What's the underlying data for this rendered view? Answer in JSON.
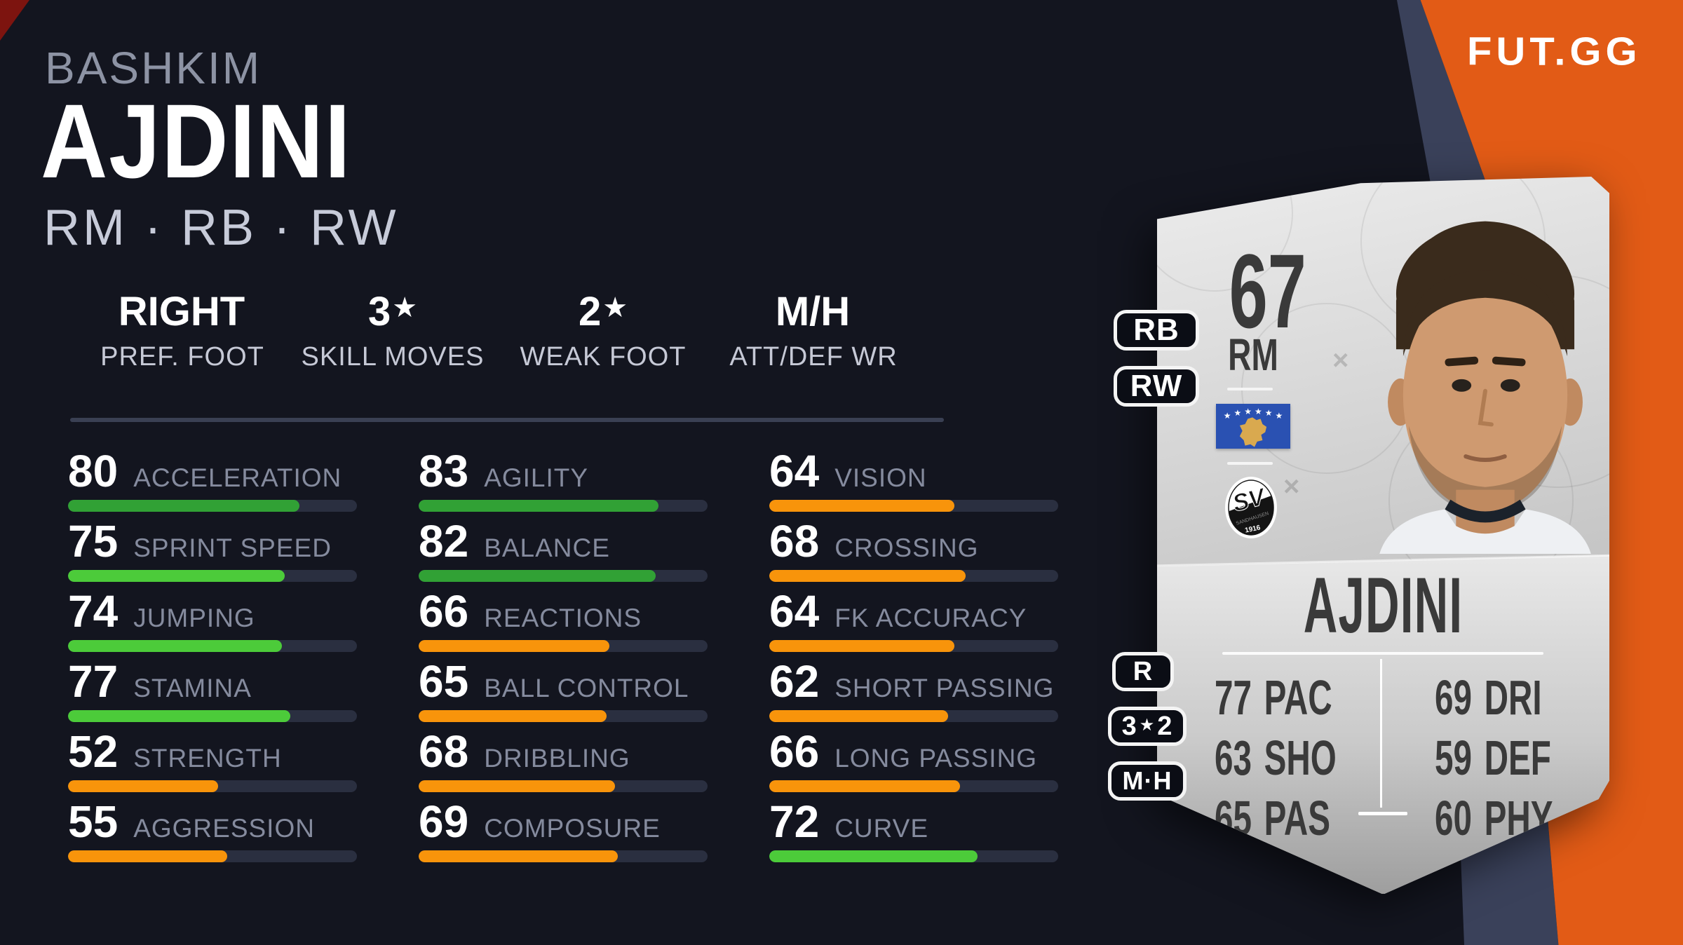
{
  "brand": {
    "logo_text": "FUT.GG"
  },
  "player": {
    "first_name": "BASHKIM",
    "last_name": "AJDINI",
    "positions": "RM · RB · RW"
  },
  "summary": [
    {
      "value": "RIGHT",
      "star": "",
      "label": "PREF. FOOT"
    },
    {
      "value": "3",
      "star": "★",
      "label": "SKILL MOVES"
    },
    {
      "value": "2",
      "star": "★",
      "label": "WEAK FOOT"
    },
    {
      "value": "M/H",
      "star": "",
      "label": "ATT/DEF WR"
    }
  ],
  "stats": {
    "columns": [
      {
        "rows": [
          {
            "label": "ACCELERATION",
            "value": 80,
            "tier": "green_dark"
          },
          {
            "label": "SPRINT SPEED",
            "value": 75,
            "tier": "green"
          },
          {
            "label": "JUMPING",
            "value": 74,
            "tier": "green"
          },
          {
            "label": "STAMINA",
            "value": 77,
            "tier": "green"
          },
          {
            "label": "STRENGTH",
            "value": 52,
            "tier": "orange"
          },
          {
            "label": "AGGRESSION",
            "value": 55,
            "tier": "orange"
          }
        ]
      },
      {
        "rows": [
          {
            "label": "AGILITY",
            "value": 83,
            "tier": "green_dark"
          },
          {
            "label": "BALANCE",
            "value": 82,
            "tier": "green_dark"
          },
          {
            "label": "REACTIONS",
            "value": 66,
            "tier": "orange"
          },
          {
            "label": "BALL CONTROL",
            "value": 65,
            "tier": "orange"
          },
          {
            "label": "DRIBBLING",
            "value": 68,
            "tier": "orange"
          },
          {
            "label": "COMPOSURE",
            "value": 69,
            "tier": "orange"
          }
        ]
      },
      {
        "rows": [
          {
            "label": "VISION",
            "value": 64,
            "tier": "orange"
          },
          {
            "label": "CROSSING",
            "value": 68,
            "tier": "orange"
          },
          {
            "label": "FK ACCURACY",
            "value": 64,
            "tier": "orange"
          },
          {
            "label": "SHORT PASSING",
            "value": 62,
            "tier": "orange"
          },
          {
            "label": "LONG PASSING",
            "value": 66,
            "tier": "orange"
          },
          {
            "label": "CURVE",
            "value": 72,
            "tier": "green"
          }
        ]
      }
    ]
  },
  "card": {
    "rating": "67",
    "position": "RM",
    "alt_positions": {
      "first": "RB",
      "second": "RW"
    },
    "side_badges": {
      "foot": "R",
      "skill_a": "3",
      "skill_star": "★",
      "skill_b": "2",
      "workrate": "M·H"
    },
    "club": {
      "initials": "SV",
      "name": "SANDHAUSEN",
      "year": "1916"
    },
    "name": "AJDINI",
    "face_stats": [
      {
        "value": "77",
        "label": "PAC"
      },
      {
        "value": "63",
        "label": "SHO"
      },
      {
        "value": "65",
        "label": "PAS"
      },
      {
        "value": "69",
        "label": "DRI"
      },
      {
        "value": "59",
        "label": "DEF"
      },
      {
        "value": "60",
        "label": "PHY"
      }
    ]
  },
  "icons": {
    "star": "★",
    "x_mark": "×"
  },
  "colors": {
    "tiers": {
      "green_dark": "#31a135",
      "green": "#4ccb3a",
      "orange": "#f8940b"
    },
    "brand_orange": "#e25b16",
    "steel_stripe": "#3a415a",
    "background": "#13151f"
  }
}
